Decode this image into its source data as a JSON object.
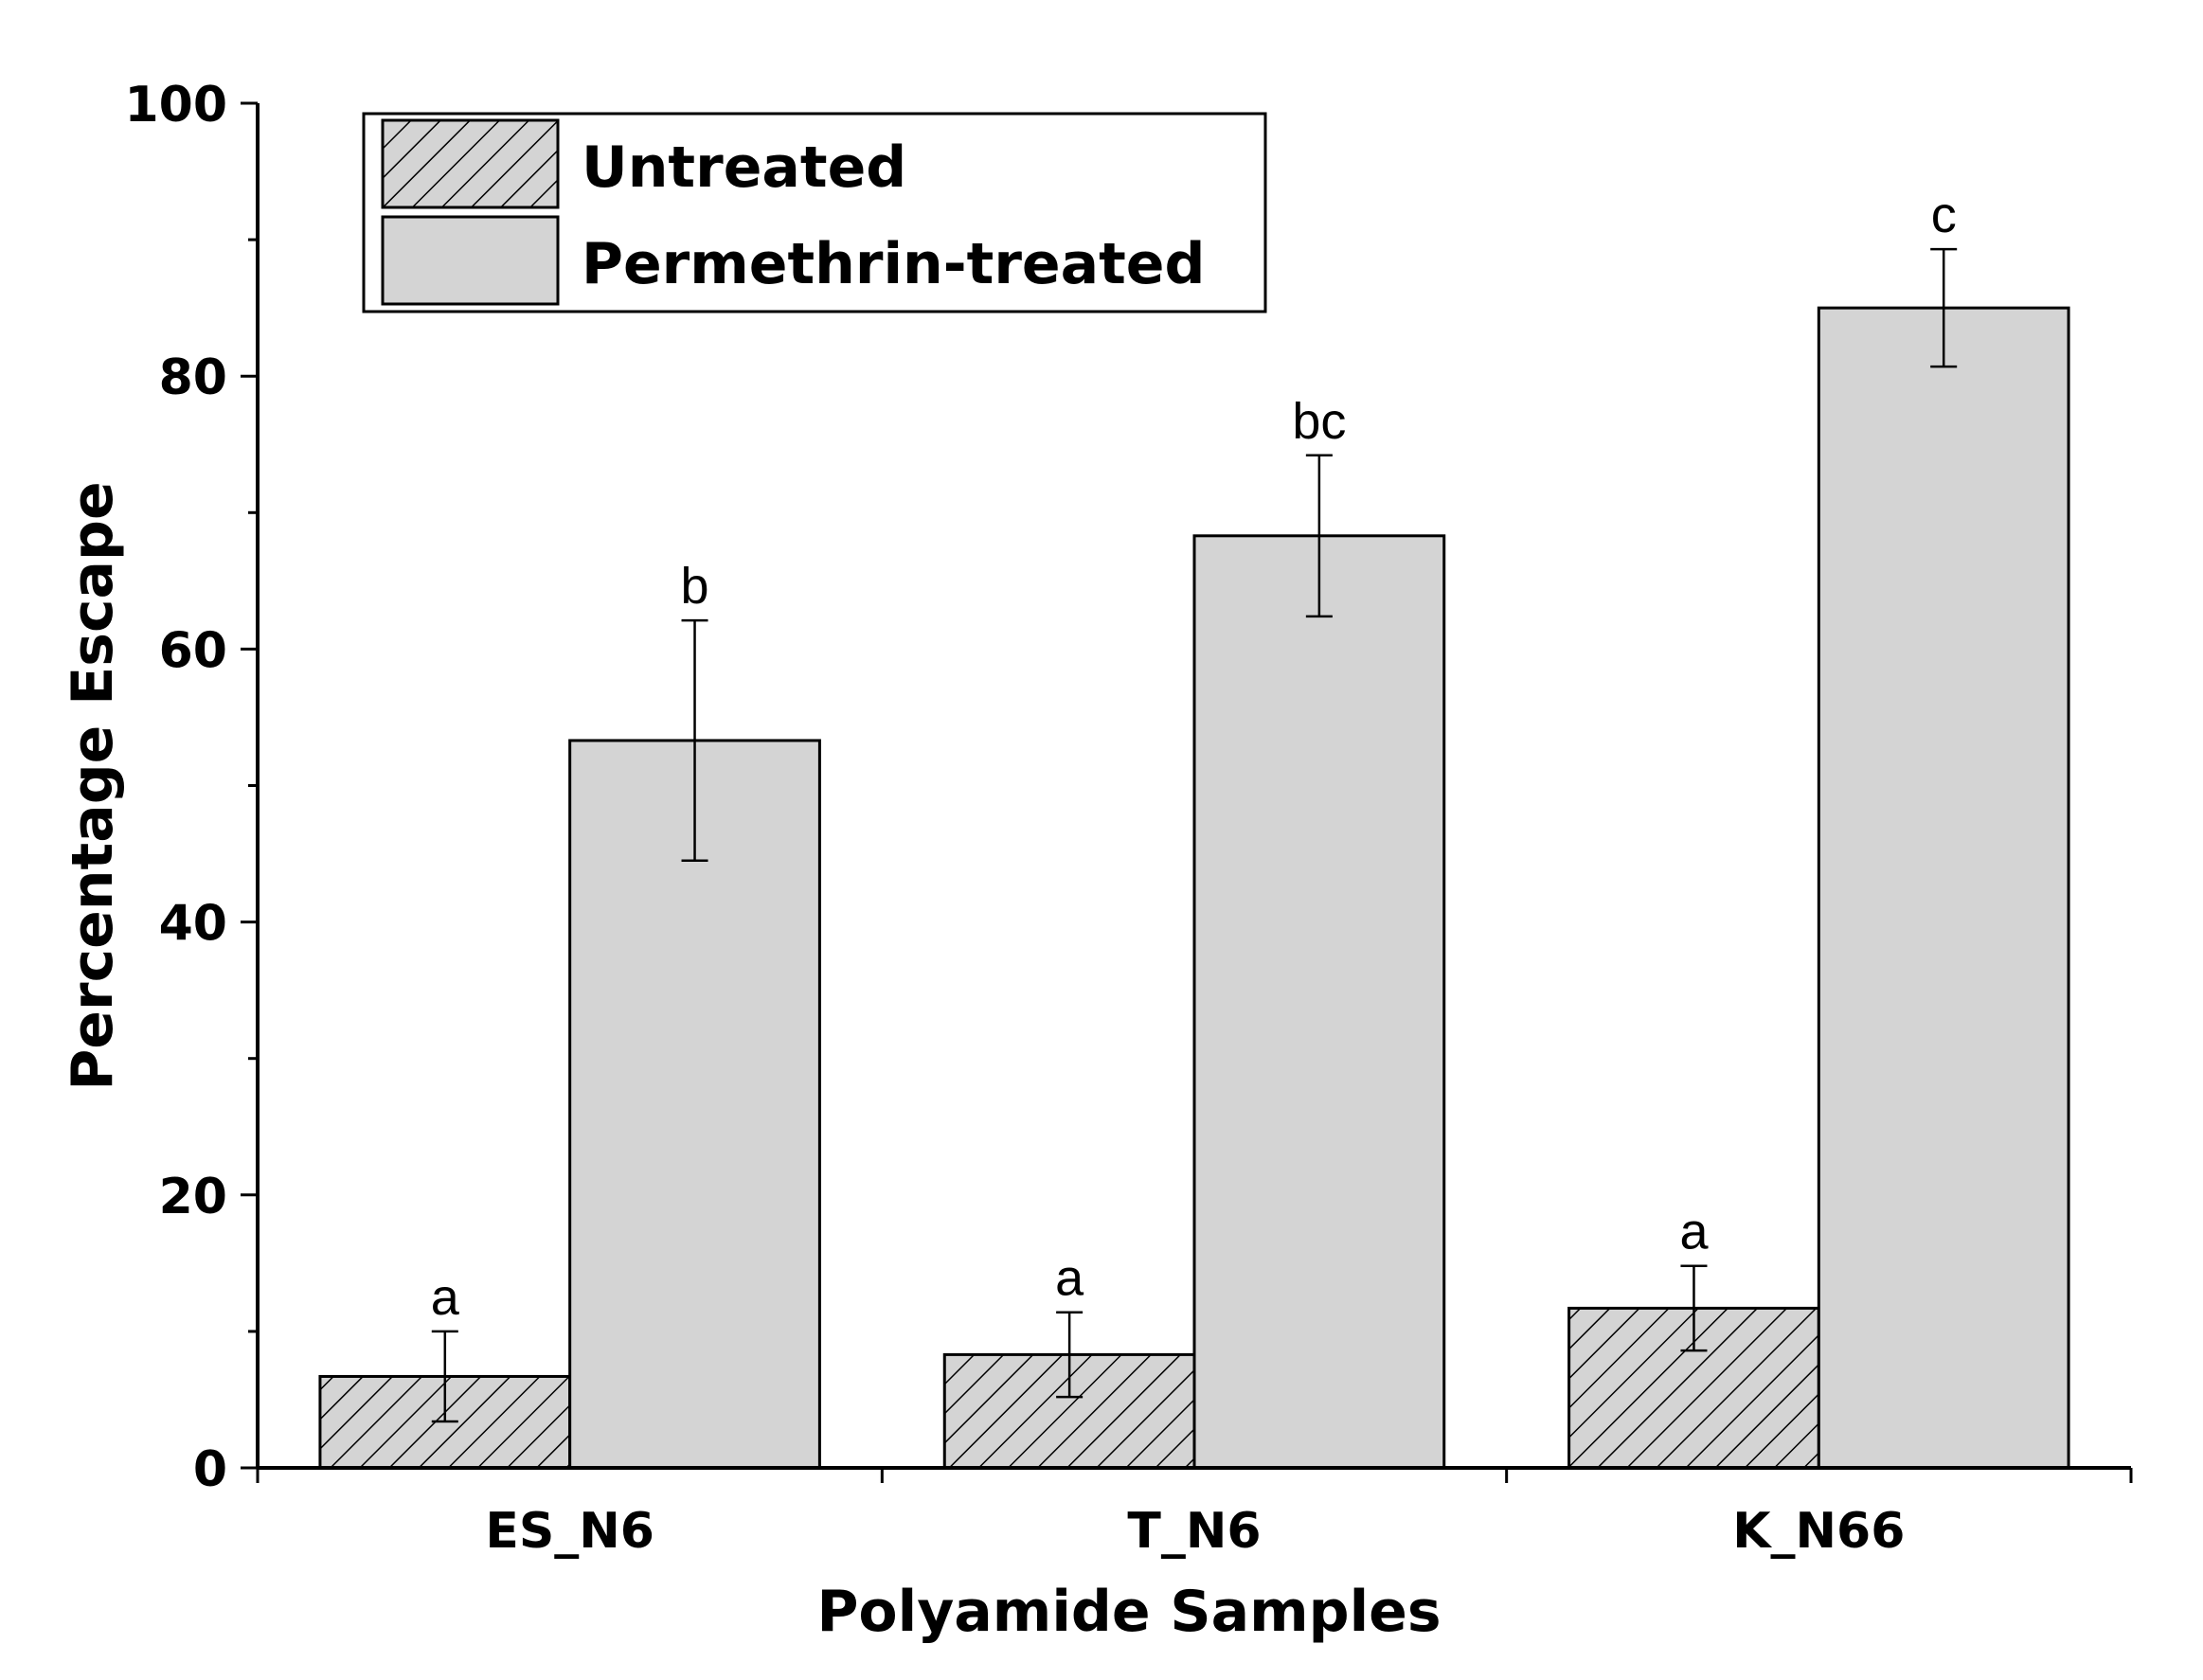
{
  "chart_data": {
    "type": "bar",
    "ylabel": "Percentage Escape",
    "xlabel": "Polyamide Samples",
    "ylim": [
      0,
      100
    ],
    "yticks": [
      0,
      20,
      40,
      60,
      80,
      100
    ],
    "categories": [
      "ES_N6",
      "T_N6",
      "K_N66"
    ],
    "series": [
      {
        "name": "Untreated",
        "values": [
          6.7,
          8.3,
          11.7
        ],
        "errors": [
          3.3,
          3.1,
          3.1
        ],
        "labels": [
          "a",
          "a",
          "a"
        ],
        "fill": "#d4d4d4",
        "pattern": "hatch"
      },
      {
        "name": "Permethrin-treated",
        "values": [
          53.3,
          68.3,
          85.0
        ],
        "errors": [
          8.8,
          5.9,
          4.3
        ],
        "labels": [
          "b",
          "bc",
          "c"
        ],
        "fill": "#d4d4d4",
        "pattern": "solid"
      }
    ],
    "legend_position": "top-left",
    "grid": false
  }
}
